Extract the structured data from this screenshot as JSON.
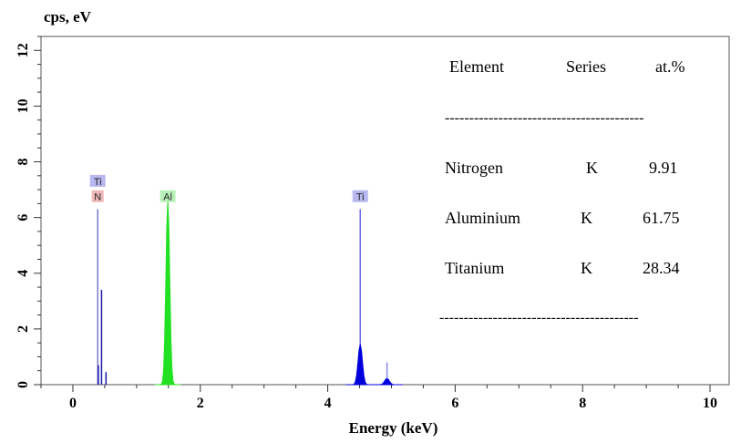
{
  "chart_data": {
    "type": "line",
    "ylabel": "cps, eV",
    "xlabel": "Energy (keV)",
    "xlim": [
      -0.5,
      10.3
    ],
    "ylim": [
      0,
      12.5
    ],
    "x_ticks": [
      0,
      2,
      4,
      6,
      8,
      10
    ],
    "y_ticks": [
      0,
      2,
      4,
      6,
      8,
      10,
      12
    ],
    "peaks": [
      {
        "element": "N",
        "energy": 0.39,
        "height": 6.3,
        "color": "#7a7acc"
      },
      {
        "element": "Ti",
        "energy": 0.45,
        "height": 3.4,
        "color": "#1a1aa8"
      },
      {
        "element": "Ti",
        "energy": 0.4,
        "height": 0.7,
        "color": "#1a1aa8"
      },
      {
        "element": "Ti",
        "energy": 0.52,
        "height": 0.45,
        "color": "#1a1aa8"
      },
      {
        "element": "Al",
        "energy": 1.49,
        "height": 6.6,
        "color": "#22e022",
        "fill": true,
        "width": 0.08
      },
      {
        "element": "Ti",
        "energy": 4.51,
        "height": 6.3,
        "color": "#6a6ae6"
      },
      {
        "element": "Ti",
        "energy": 4.51,
        "height": 1.45,
        "color": "#0000dd",
        "fill": true,
        "width": 0.09
      },
      {
        "element": "Ti",
        "energy": 4.93,
        "height": 0.8,
        "color": "#8888ee"
      },
      {
        "element": "Ti",
        "energy": 4.93,
        "height": 0.22,
        "color": "#0000dd",
        "fill": true,
        "width": 0.1
      }
    ],
    "peak_labels": [
      {
        "text": "Ti",
        "energy": 0.39,
        "y": 7.3,
        "bg": "#b8b8f0"
      },
      {
        "text": "N",
        "energy": 0.39,
        "y": 6.75,
        "bg": "#f0b8b8"
      },
      {
        "text": "Al",
        "energy": 1.49,
        "y": 6.75,
        "bg": "#b8f0b8"
      },
      {
        "text": "Ti",
        "energy": 4.51,
        "y": 6.75,
        "bg": "#b8b8f0"
      }
    ]
  },
  "table": {
    "headers": [
      "Element",
      "Series",
      "at.%"
    ],
    "rows": [
      {
        "element": "Nitrogen",
        "series": "K",
        "at": "9.91"
      },
      {
        "element": "Aluminium",
        "series": "K",
        "at": "61.75"
      },
      {
        "element": "Titanium",
        "series": "K",
        "at": "28.34"
      }
    ],
    "divider": "-----------------------------------------"
  }
}
